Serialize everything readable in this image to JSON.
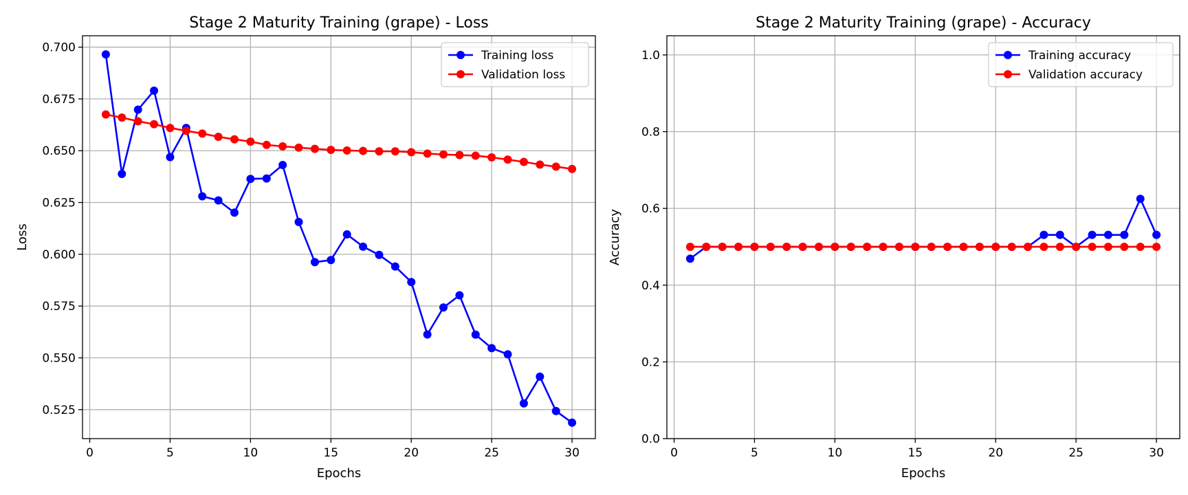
{
  "chart_data": [
    {
      "type": "line",
      "title": "Stage 2 Maturity Training (grape) - Loss",
      "xlabel": "Epochs",
      "ylabel": "Loss",
      "xlim": [
        -0.45,
        31.45
      ],
      "ylim": [
        0.511,
        0.7055
      ],
      "xticks": [
        0,
        5,
        10,
        15,
        20,
        25,
        30
      ],
      "yticks": [
        0.525,
        0.55,
        0.575,
        0.6,
        0.625,
        0.65,
        0.675,
        0.7
      ],
      "ytick_labels": [
        "0.525",
        "0.550",
        "0.575",
        "0.600",
        "0.625",
        "0.650",
        "0.675",
        "0.700"
      ],
      "grid": true,
      "legend": "top-right",
      "x": [
        1,
        2,
        3,
        4,
        5,
        6,
        7,
        8,
        9,
        10,
        11,
        12,
        13,
        14,
        15,
        16,
        17,
        18,
        19,
        20,
        21,
        22,
        23,
        24,
        25,
        26,
        27,
        28,
        29,
        30
      ],
      "series": [
        {
          "name": "Training loss",
          "color": "#0000ff",
          "values": [
            0.6965,
            0.6388,
            0.6698,
            0.679,
            0.6469,
            0.661,
            0.628,
            0.626,
            0.6201,
            0.6364,
            0.6366,
            0.6431,
            0.6156,
            0.5962,
            0.5972,
            0.6096,
            0.6037,
            0.5997,
            0.5941,
            0.5866,
            0.5613,
            0.5743,
            0.5802,
            0.5612,
            0.5547,
            0.5517,
            0.528,
            0.5409,
            0.5243,
            0.5187
          ]
        },
        {
          "name": "Validation loss",
          "color": "#ff0000",
          "values": [
            0.6675,
            0.666,
            0.6642,
            0.6628,
            0.661,
            0.6596,
            0.6583,
            0.6567,
            0.6555,
            0.6544,
            0.6528,
            0.6521,
            0.6515,
            0.6509,
            0.6504,
            0.6501,
            0.6499,
            0.6497,
            0.6497,
            0.6493,
            0.6486,
            0.6482,
            0.6479,
            0.6476,
            0.6468,
            0.6457,
            0.6446,
            0.6433,
            0.6423,
            0.6412
          ]
        }
      ]
    },
    {
      "type": "line",
      "title": "Stage 2 Maturity Training (grape) - Accuracy",
      "xlabel": "Epochs",
      "ylabel": "Accuracy",
      "xlim": [
        -0.45,
        31.45
      ],
      "ylim": [
        0.0,
        1.05
      ],
      "xticks": [
        0,
        5,
        10,
        15,
        20,
        25,
        30
      ],
      "yticks": [
        0.0,
        0.2,
        0.4,
        0.6,
        0.8,
        1.0
      ],
      "ytick_labels": [
        "0.0",
        "0.2",
        "0.4",
        "0.6",
        "0.8",
        "1.0"
      ],
      "grid": true,
      "legend": "top-right",
      "x": [
        1,
        2,
        3,
        4,
        5,
        6,
        7,
        8,
        9,
        10,
        11,
        12,
        13,
        14,
        15,
        16,
        17,
        18,
        19,
        20,
        21,
        22,
        23,
        24,
        25,
        26,
        27,
        28,
        29,
        30
      ],
      "series": [
        {
          "name": "Training accuracy",
          "color": "#0000ff",
          "values": [
            0.469,
            0.5,
            0.5,
            0.5,
            0.5,
            0.5,
            0.5,
            0.5,
            0.5,
            0.5,
            0.5,
            0.5,
            0.5,
            0.5,
            0.5,
            0.5,
            0.5,
            0.5,
            0.5,
            0.5,
            0.5,
            0.5,
            0.531,
            0.531,
            0.5,
            0.531,
            0.531,
            0.531,
            0.625,
            0.531
          ]
        },
        {
          "name": "Validation accuracy",
          "color": "#ff0000",
          "values": [
            0.5,
            0.5,
            0.5,
            0.5,
            0.5,
            0.5,
            0.5,
            0.5,
            0.5,
            0.5,
            0.5,
            0.5,
            0.5,
            0.5,
            0.5,
            0.5,
            0.5,
            0.5,
            0.5,
            0.5,
            0.5,
            0.5,
            0.5,
            0.5,
            0.5,
            0.5,
            0.5,
            0.5,
            0.5,
            0.5
          ]
        }
      ]
    }
  ]
}
